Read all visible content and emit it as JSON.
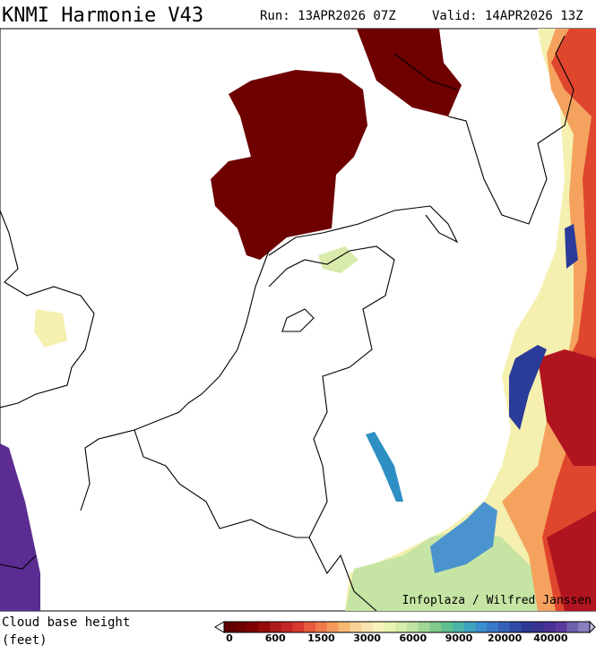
{
  "header": {
    "title": "KNMI Harmonie V43",
    "run": "Run: 13APR2026 07Z",
    "valid": "Valid: 14APR2026 13Z"
  },
  "credit": "Infoplaza / Wilfred Janssen",
  "legend": {
    "label_line1": "Cloud base height",
    "label_line2": "(feet)",
    "ticks": [
      "0",
      "600",
      "1500",
      "3000",
      "6000",
      "9000",
      "20000",
      "40000"
    ]
  }
}
